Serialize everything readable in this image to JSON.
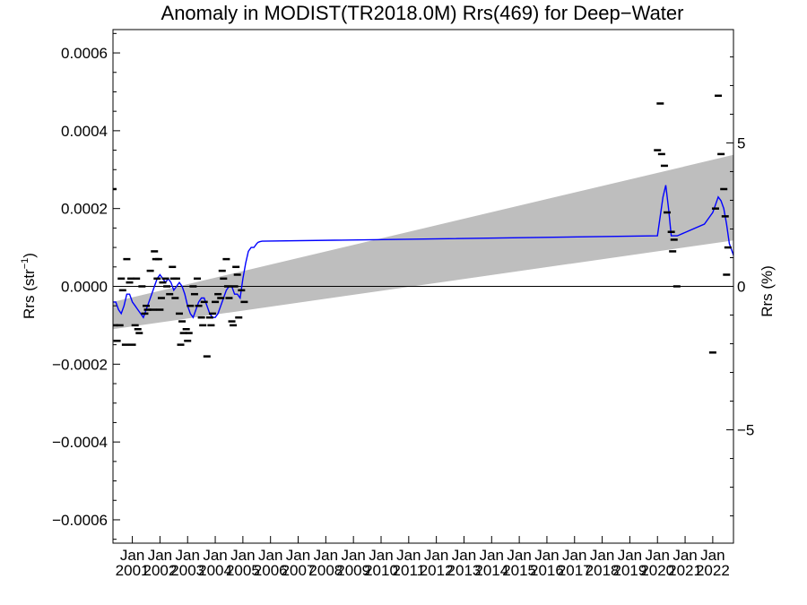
{
  "chart_data": {
    "type": "line",
    "title": "Anomaly in MODIST(TR2018.0M) Rrs(469) for Deep−Water",
    "ylabel_main": "Rrs (str",
    "ylabel_sup": "−1",
    "ylabel_close": ")",
    "y2label": "Rrs (%)",
    "ylim": [
      -0.00066,
      0.00066
    ],
    "y2lim": [
      -8.95,
      8.95
    ],
    "xlim": [
      2000.3,
      2022.75
    ],
    "y_ticks": [
      {
        "value": 0.0006,
        "label": "0.0006"
      },
      {
        "value": 0.0004,
        "label": "0.0004"
      },
      {
        "value": 0.0002,
        "label": "0.0002"
      },
      {
        "value": 0.0,
        "label": "0.0000"
      },
      {
        "value": -0.0002,
        "label": "−0.0002"
      },
      {
        "value": -0.0004,
        "label": "−0.0004"
      },
      {
        "value": -0.0006,
        "label": "−0.0006"
      }
    ],
    "y2_ticks": [
      {
        "value": 5,
        "label": "5"
      },
      {
        "value": 0,
        "label": "0"
      },
      {
        "value": -5,
        "label": "−5"
      }
    ],
    "x_ticks": [
      {
        "value": 2001,
        "top": "Jan",
        "bottom": "2001"
      },
      {
        "value": 2002,
        "top": "Jan",
        "bottom": "2002"
      },
      {
        "value": 2003,
        "top": "Jan",
        "bottom": "2003"
      },
      {
        "value": 2004,
        "top": "Jan",
        "bottom": "2004"
      },
      {
        "value": 2005,
        "top": "Jan",
        "bottom": "2005"
      },
      {
        "value": 2006,
        "top": "Jan",
        "bottom": "2006"
      },
      {
        "value": 2007,
        "top": "Jan",
        "bottom": "2007"
      },
      {
        "value": 2008,
        "top": "Jan",
        "bottom": "2008"
      },
      {
        "value": 2009,
        "top": "Jan",
        "bottom": "2009"
      },
      {
        "value": 2010,
        "top": "Jan",
        "bottom": "2010"
      },
      {
        "value": 2011,
        "top": "Jan",
        "bottom": "2011"
      },
      {
        "value": 2012,
        "top": "Jan",
        "bottom": "2012"
      },
      {
        "value": 2013,
        "top": "Jan",
        "bottom": "2013"
      },
      {
        "value": 2014,
        "top": "Jan",
        "bottom": "2014"
      },
      {
        "value": 2015,
        "top": "Jan",
        "bottom": "2015"
      },
      {
        "value": 2016,
        "top": "Jan",
        "bottom": "2016"
      },
      {
        "value": 2017,
        "top": "Jan",
        "bottom": "2017"
      },
      {
        "value": 2018,
        "top": "Jan",
        "bottom": "2018"
      },
      {
        "value": 2019,
        "top": "Jan",
        "bottom": "2019"
      },
      {
        "value": 2020,
        "top": "Jan",
        "bottom": "2020"
      },
      {
        "value": 2021,
        "top": "Jan",
        "bottom": "2021"
      },
      {
        "value": 2022,
        "top": "Jan",
        "bottom": "2022"
      }
    ],
    "grid": false,
    "zero_line": true,
    "trend_band": {
      "x": [
        2000.3,
        2022.75
      ],
      "upper": [
        -4e-05,
        0.000338
      ],
      "lower": [
        -0.00011,
        0.000118
      ],
      "color": "#bebebe"
    },
    "series": [
      {
        "kind": "line",
        "color": "#0000ff",
        "x": [
          2000.3,
          2000.4,
          2000.5,
          2000.6,
          2000.7,
          2000.8,
          2000.9,
          2001.0,
          2001.1,
          2001.2,
          2001.3,
          2001.4,
          2001.5,
          2001.6,
          2001.7,
          2001.8,
          2001.9,
          2002.0,
          2002.1,
          2002.2,
          2002.3,
          2002.4,
          2002.5,
          2002.6,
          2002.7,
          2002.8,
          2002.9,
          2003.0,
          2003.1,
          2003.2,
          2003.3,
          2003.4,
          2003.5,
          2003.6,
          2003.7,
          2003.8,
          2003.9,
          2004.0,
          2004.1,
          2004.2,
          2004.3,
          2004.4,
          2004.5,
          2004.6,
          2004.7,
          2004.8,
          2004.9,
          2005.0,
          2005.1,
          2005.2,
          2005.3,
          2005.4,
          2005.5,
          2005.55,
          2005.62,
          2005.7,
          2020.0,
          2020.1,
          2020.2,
          2020.3,
          2020.4,
          2020.5,
          2020.55,
          2020.65,
          2020.72,
          2021.7,
          2021.9,
          2022.0,
          2022.1,
          2022.2,
          2022.3,
          2022.4,
          2022.5,
          2022.6,
          2022.75
        ],
        "y": [
          -4e-05,
          -4e-05,
          -6e-05,
          -7e-05,
          -5e-05,
          -2e-05,
          -2e-05,
          -4e-05,
          -5e-05,
          -6e-05,
          -7e-05,
          -8e-05,
          -6e-05,
          -4e-05,
          -2e-05,
          0.0,
          2e-05,
          3e-05,
          2e-05,
          1e-05,
          2e-05,
          1e-05,
          -1e-05,
          0.0,
          1e-05,
          0.0,
          -2e-05,
          -5e-05,
          -7e-05,
          -8e-05,
          -6e-05,
          -4e-05,
          -3e-05,
          -3e-05,
          -5e-05,
          -7e-05,
          -8e-05,
          -8e-05,
          -7e-05,
          -5e-05,
          -3e-05,
          -1e-05,
          0.0,
          0.0,
          -2e-05,
          -2e-05,
          -3e-05,
          2e-05,
          6e-05,
          9e-05,
          0.0001,
          0.0001,
          0.00011,
          0.000113,
          0.000115,
          0.000116,
          0.00013,
          0.00018,
          0.00023,
          0.00026,
          0.0002,
          0.00013,
          0.00013,
          0.00013,
          0.00013,
          0.00016,
          0.00018,
          0.00019,
          0.00021,
          0.00023,
          0.00022,
          0.0002,
          0.00016,
          0.00011,
          8e-05
        ]
      },
      {
        "kind": "dashes",
        "color": "#000000",
        "x": [
          2000.3,
          2000.35,
          2000.45,
          2000.55,
          2000.6,
          2000.65,
          2000.75,
          2000.8,
          2000.9,
          2000.95,
          2001.0,
          2001.1,
          2001.15,
          2001.2,
          2001.25,
          2001.35,
          2001.45,
          2001.5,
          2001.55,
          2001.65,
          2001.75,
          2001.8,
          2001.85,
          2001.9,
          2001.95,
          2002.0,
          2002.05,
          2002.1,
          2002.2,
          2002.25,
          2002.35,
          2002.45,
          2002.5,
          2002.55,
          2002.6,
          2002.7,
          2002.75,
          2002.8,
          2002.85,
          2002.95,
          2003.0,
          2003.05,
          2003.1,
          2003.2,
          2003.25,
          2003.35,
          2003.4,
          2003.5,
          2003.55,
          2003.6,
          2003.7,
          2003.8,
          2003.85,
          2003.9,
          2004.0,
          2004.1,
          2004.2,
          2004.25,
          2004.3,
          2004.4,
          2004.45,
          2004.5,
          2004.6,
          2004.65,
          2004.7,
          2004.75,
          2004.8,
          2004.85,
          2004.95,
          2005.05,
          2020.0,
          2020.1,
          2020.15,
          2020.25,
          2020.35,
          2020.5,
          2020.55,
          2020.6,
          2020.7,
          2022.0,
          2022.1,
          2022.2,
          2022.3,
          2022.4,
          2022.45,
          2022.5,
          2022.55
        ],
        "y": [
          0.00025,
          -0.0001,
          -0.00014,
          -0.0001,
          2e-05,
          -1e-05,
          -0.00015,
          7e-05,
          1e-05,
          2e-05,
          -0.00015,
          -0.0001,
          2e-05,
          -0.00011,
          -0.00012,
          0.0,
          -7e-05,
          -5e-05,
          -6e-05,
          4e-05,
          -6e-05,
          9e-05,
          7e-05,
          2e-05,
          7e-05,
          -6e-05,
          -3e-05,
          1e-05,
          2e-05,
          0.0,
          -2e-05,
          5e-05,
          2e-05,
          -3e-05,
          2e-05,
          -7e-05,
          -0.00015,
          -9e-05,
          -0.00012,
          -0.00011,
          -0.00014,
          -0.00012,
          -5e-05,
          0.0,
          -2e-05,
          2e-05,
          -5e-05,
          -8e-05,
          -0.0001,
          -4e-05,
          -0.00018,
          -8e-05,
          -0.0001,
          -7e-05,
          -4e-05,
          -2e-05,
          -3e-05,
          4e-05,
          2e-05,
          7e-05,
          0.0,
          -3e-05,
          -9e-05,
          -0.0001,
          0.0,
          5e-05,
          3e-05,
          -8e-05,
          -1e-05,
          -4e-05,
          0.00035,
          0.00047,
          0.00034,
          0.00031,
          0.00019,
          0.00014,
          9e-05,
          0.00012,
          0.0,
          -0.00017,
          0.0002,
          0.00049,
          0.00034,
          0.00025,
          0.00018,
          3e-05,
          0.0001
        ]
      }
    ]
  }
}
